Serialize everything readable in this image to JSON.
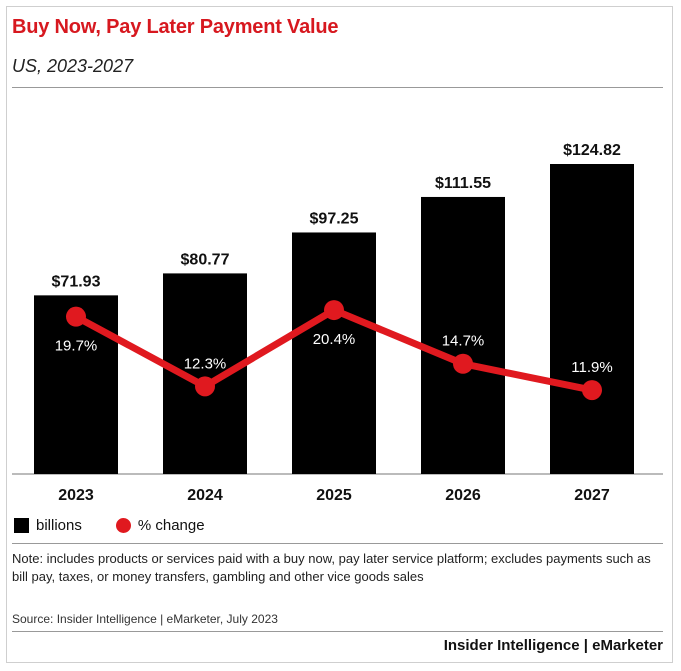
{
  "header": {
    "title": "Buy Now, Pay Later Payment Value",
    "subtitle": "US, 2023-2027"
  },
  "legend": {
    "bars_label": "billions",
    "line_label": "% change"
  },
  "footer": {
    "note": "Note: includes products or services paid with a buy now, pay later service platform; excludes payments such as bill pay, taxes, or money transfers, gambling and other vice goods sales",
    "source": "Source: Insider Intelligence | eMarketer, July 2023",
    "brand": "Insider Intelligence | eMarketer"
  },
  "colors": {
    "title": "#d7181f",
    "bar": "#000000",
    "line": "#e0191f"
  },
  "chart_data": {
    "type": "bar",
    "categories": [
      "2023",
      "2024",
      "2025",
      "2026",
      "2027"
    ],
    "series": [
      {
        "name": "billions",
        "values": [
          71.93,
          80.77,
          97.25,
          111.55,
          124.82
        ],
        "labels": [
          "$71.93",
          "$80.77",
          "$97.25",
          "$111.55",
          "$124.82"
        ]
      },
      {
        "name": "% change",
        "type": "line",
        "values": [
          19.7,
          12.3,
          20.4,
          14.7,
          11.9
        ],
        "labels": [
          "19.7%",
          "12.3%",
          "20.4%",
          "14.7%",
          "11.9%"
        ]
      }
    ],
    "title": "Buy Now, Pay Later Payment Value",
    "subtitle": "US, 2023-2027",
    "xlabel": "",
    "ylabel": "",
    "ylim": [
      0,
      124.82
    ],
    "grid": false,
    "legend_position": "bottom-left"
  }
}
